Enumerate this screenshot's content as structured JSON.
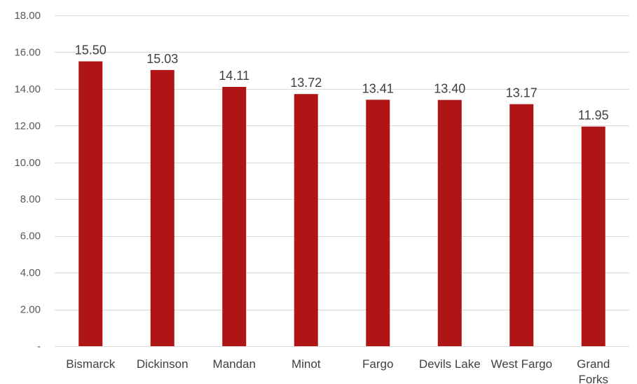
{
  "chart_data": {
    "type": "bar",
    "title": "",
    "xlabel": "",
    "ylabel": "",
    "categories": [
      "Bismarck",
      "Dickinson",
      "Mandan",
      "Minot",
      "Fargo",
      "Devils Lake",
      "West Fargo",
      "Grand Forks"
    ],
    "category_lines": [
      [
        "Bismarck"
      ],
      [
        "Dickinson"
      ],
      [
        "Mandan"
      ],
      [
        "Minot"
      ],
      [
        "Fargo"
      ],
      [
        "Devils Lake"
      ],
      [
        "West Fargo"
      ],
      [
        "Grand",
        "Forks"
      ]
    ],
    "values": [
      15.5,
      15.03,
      14.11,
      13.72,
      13.41,
      13.4,
      13.17,
      11.95
    ],
    "data_labels": [
      "15.50",
      "15.03",
      "14.11",
      "13.72",
      "13.41",
      "13.40",
      "13.17",
      "11.95"
    ],
    "ylim": [
      0,
      18
    ],
    "yticks": [
      0,
      2,
      4,
      6,
      8,
      10,
      12,
      14,
      16,
      18
    ],
    "ytick_labels": [
      "-",
      "2.00",
      "4.00",
      "6.00",
      "8.00",
      "10.00",
      "12.00",
      "14.00",
      "16.00",
      "18.00"
    ],
    "grid": true,
    "legend": "none",
    "bar_color": "#b01515"
  }
}
